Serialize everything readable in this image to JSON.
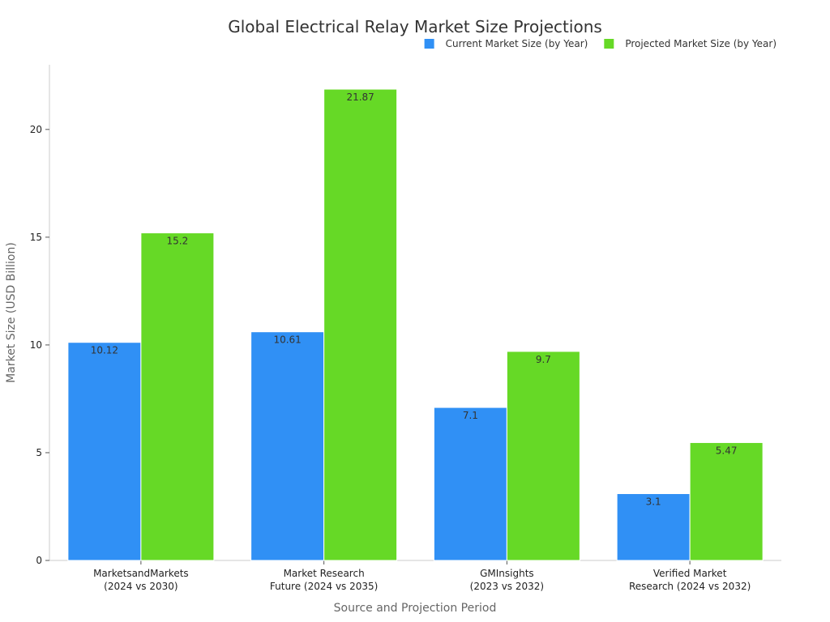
{
  "chart_data": {
    "type": "bar",
    "title": "Global Electrical Relay Market Size Projections",
    "xlabel": "Source and Projection Period",
    "ylabel": "Market Size (USD Billion)",
    "ylim": [
      0,
      23
    ],
    "yticks": [
      0,
      5,
      10,
      15,
      20
    ],
    "grid": false,
    "legend_position": "top-right",
    "categories": [
      [
        "MarketsandMarkets",
        "(2024 vs 2030)"
      ],
      [
        "Market Research",
        "Future (2024 vs 2035)"
      ],
      [
        "GMInsights",
        "(2023 vs 2032)"
      ],
      [
        "Verified Market",
        "Research (2024 vs 2032)"
      ]
    ],
    "series": [
      {
        "name": "Current Market Size (by Year)",
        "color": "#3090f5",
        "values": [
          10.12,
          10.61,
          7.1,
          3.1
        ]
      },
      {
        "name": "Projected Market Size (by Year)",
        "color": "#66d926",
        "values": [
          15.2,
          21.87,
          9.7,
          5.47
        ]
      }
    ]
  }
}
